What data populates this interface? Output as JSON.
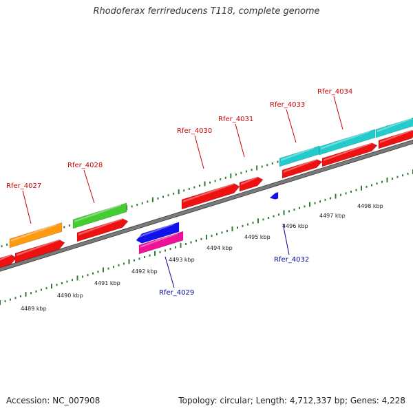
{
  "title": "Rhodoferax ferrireducens T118, complete genome",
  "footer": {
    "accession": "Accession: NC_007908",
    "summary": "Topology: circular; Length: 4,712,337 bp; Genes: 4,228"
  },
  "colors": {
    "background": "#ffffff",
    "backbone": "#7a7a7a",
    "backbone_outline": "#4a4a4a",
    "tick": "#2e7d32",
    "gene_red": "#ee1111",
    "gene_orange": "#ff9910",
    "gene_green": "#44cc33",
    "gene_blue": "#1111ee",
    "gene_pink": "#ee1199",
    "gene_cyan": "#22cccc",
    "label_forward": "#cc0000",
    "label_reverse": "#000099"
  },
  "scale_labels": [
    "4489 kbp",
    "4490 kbp",
    "4491 kbp",
    "4492 kbp",
    "4493 kbp",
    "4494 kbp",
    "4495 kbp",
    "4496 kbp",
    "4497 kbp",
    "4498 kbp"
  ],
  "gene_labels": [
    {
      "text": "Rfer_4027",
      "strand": "forward"
    },
    {
      "text": "Rfer_4028",
      "strand": "forward"
    },
    {
      "text": "Rfer_4029",
      "strand": "reverse"
    },
    {
      "text": "Rfer_4030",
      "strand": "forward"
    },
    {
      "text": "Rfer_4031",
      "strand": "forward"
    },
    {
      "text": "Rfer_4032",
      "strand": "reverse"
    },
    {
      "text": "Rfer_4033",
      "strand": "forward"
    },
    {
      "text": "Rfer_4034",
      "strand": "forward"
    }
  ]
}
